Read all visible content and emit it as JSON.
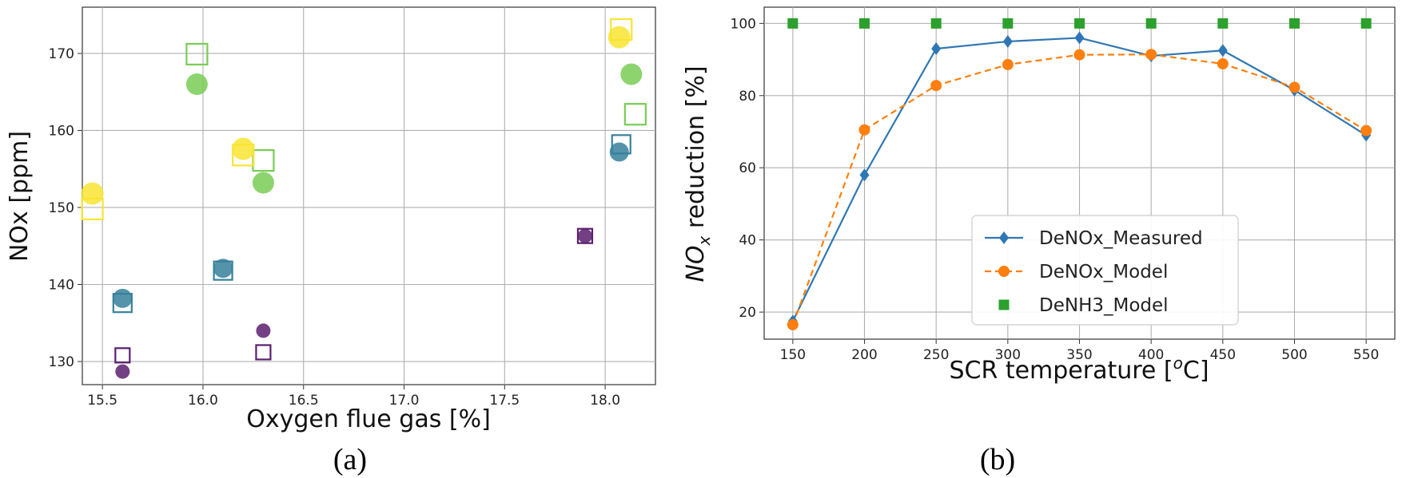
{
  "chart_data": [
    {
      "type": "scatter",
      "panel_label": "(a)",
      "xlabel": "Oxygen flue gas [%]",
      "ylabel": "NOx [ppm]",
      "xlim": [
        15.4,
        18.25
      ],
      "ylim": [
        127,
        176
      ],
      "xticks": [
        15.5,
        16.0,
        16.5,
        17.0,
        17.5,
        18.0
      ],
      "xtick_labels": [
        "15.5",
        "16.0",
        "16.5",
        "17.0",
        "17.5",
        "18.0"
      ],
      "yticks": [
        130,
        140,
        150,
        160,
        170
      ],
      "ytick_labels": [
        "130",
        "140",
        "150",
        "160",
        "170"
      ],
      "grid": true,
      "colors": {
        "purple": "#5b1e6e",
        "teal": "#36809b",
        "green": "#79cc55",
        "yellow": "#f9e433"
      },
      "series": [
        {
          "marker": "circle",
          "color_key": "purple",
          "points": [
            [
              15.6,
              128.7
            ],
            [
              16.3,
              134.0
            ],
            [
              17.9,
              146.3
            ]
          ]
        },
        {
          "marker": "square",
          "color_key": "purple",
          "points": [
            [
              15.6,
              130.8
            ],
            [
              16.3,
              131.2
            ],
            [
              17.9,
              146.3
            ]
          ]
        },
        {
          "marker": "circle",
          "color_key": "teal",
          "points": [
            [
              15.6,
              138.2
            ],
            [
              16.1,
              142.1
            ],
            [
              18.07,
              157.2
            ]
          ]
        },
        {
          "marker": "square",
          "color_key": "teal",
          "points": [
            [
              15.6,
              137.6
            ],
            [
              16.1,
              141.8
            ],
            [
              18.08,
              158.2
            ]
          ]
        },
        {
          "marker": "circle",
          "color_key": "green",
          "points": [
            [
              15.97,
              166.0
            ],
            [
              16.3,
              153.2
            ],
            [
              18.13,
              167.3
            ]
          ]
        },
        {
          "marker": "square",
          "color_key": "green",
          "points": [
            [
              15.97,
              169.9
            ],
            [
              16.3,
              156.1
            ],
            [
              18.15,
              162.1
            ]
          ]
        },
        {
          "marker": "circle",
          "color_key": "yellow",
          "points": [
            [
              15.45,
              151.8
            ],
            [
              16.2,
              157.6
            ],
            [
              18.07,
              172.1
            ]
          ]
        },
        {
          "marker": "square",
          "color_key": "yellow",
          "points": [
            [
              15.45,
              149.8
            ],
            [
              16.2,
              156.8
            ],
            [
              18.08,
              173.1
            ]
          ]
        }
      ]
    },
    {
      "type": "line",
      "panel_label": "(b)",
      "xlabel": "SCR temperature [",
      "xlabel_sup": "o",
      "xlabel_unit": "C]",
      "ylabel_main": "NO",
      "ylabel_sub": "x",
      "ylabel_rest": " reduction [%]",
      "x": [
        150,
        200,
        250,
        300,
        350,
        400,
        450,
        500,
        550
      ],
      "xtick_labels": [
        "150",
        "200",
        "250",
        "300",
        "350",
        "400",
        "450",
        "500",
        "550"
      ],
      "yticks": [
        20,
        40,
        60,
        80,
        100
      ],
      "ytick_labels": [
        "20",
        "40",
        "60",
        "80",
        "100"
      ],
      "xlim": [
        130,
        570
      ],
      "ylim": [
        12.5,
        104.5
      ],
      "grid": true,
      "legend_position": "lower-right",
      "series": [
        {
          "name": "DeNOx_Measured",
          "color": "#2f77b4",
          "marker": "diamond",
          "dash": "solid",
          "values": [
            17.5,
            58.0,
            93.0,
            95.0,
            96.0,
            91.0,
            92.5,
            81.5,
            69.0
          ]
        },
        {
          "name": "DeNOx_Model",
          "color": "#ff7f0e",
          "marker": "circle",
          "dash": "dashed",
          "values": [
            16.5,
            70.5,
            82.8,
            88.6,
            91.3,
            91.4,
            88.8,
            82.3,
            70.3
          ]
        },
        {
          "name": "DeNH3_Model",
          "color": "#2ca02c",
          "marker": "square",
          "dash": "none",
          "values": [
            100,
            100,
            100,
            100,
            100,
            100,
            100,
            100,
            100
          ]
        }
      ]
    }
  ]
}
